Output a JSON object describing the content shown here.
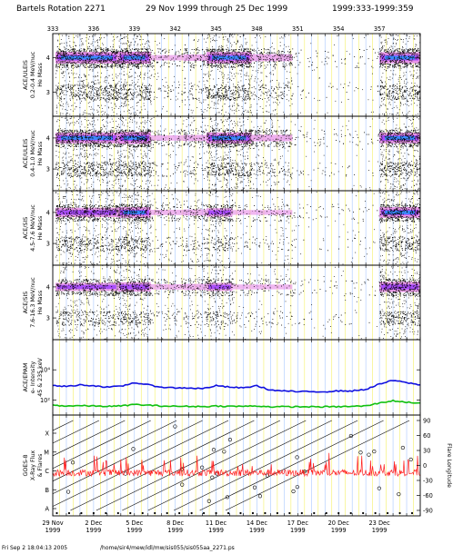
{
  "header": {
    "title_left": "Bartels Rotation 2271",
    "title_mid": "29 Nov 1999 through 25 Dec 1999",
    "title_right": "1999:333-1999:359"
  },
  "footer": {
    "timestamp": "Fri Sep  2 18:04:13 2005",
    "path": "/home/sir4/mew/idl/mw/sis055/sis055aa_2271.ps"
  },
  "colors": {
    "plasma_low": "#e68ae6",
    "plasma_mid": "#a040ff",
    "plasma_high": "#3a8aff",
    "plasma_core": "#60f0ff",
    "grid_yellow": "#f4f066",
    "grid_blue": "#a8c8ff",
    "epam_line": "#1010e0",
    "epam_low_line": "#10c010",
    "goes_line": "#ff2020"
  },
  "chart_data": {
    "type": "multi-panel time series",
    "x": {
      "day_of_year_range": [
        333,
        360
      ],
      "top_ticks": [
        "333",
        "336",
        "339",
        "342",
        "345",
        "348",
        "351",
        "354",
        "357"
      ],
      "top_tick_days": [
        333,
        336,
        339,
        342,
        345,
        348,
        351,
        354,
        357
      ],
      "bottom_ticks": [
        {
          "day": 333,
          "line1": "29 Nov",
          "line2": "1999"
        },
        {
          "day": 336,
          "line1": "2 Dec",
          "line2": "1999"
        },
        {
          "day": 339,
          "line1": "5 Dec",
          "line2": "1999"
        },
        {
          "day": 342,
          "line1": "8 Dec",
          "line2": "1999"
        },
        {
          "day": 345,
          "line1": "11 Dec",
          "line2": "1999"
        },
        {
          "day": 348,
          "line1": "14 Dec",
          "line2": "1999"
        },
        {
          "day": 351,
          "line1": "17 Dec",
          "line2": "1999"
        },
        {
          "day": 354,
          "line1": "20 Dec",
          "line2": "1999"
        },
        {
          "day": 357,
          "line1": "23 Dec",
          "line2": "1999"
        }
      ]
    },
    "mass_panels": [
      {
        "label_lines": [
          "ACE/ULEIS",
          "0.2-0.4 MeV/nuc",
          "He Mass"
        ],
        "yticks": [
          "4",
          "3"
        ],
        "ytick_values": [
          4,
          3
        ],
        "ylim": [
          2.3,
          4.7
        ],
        "activity": [
          {
            "start": 333.2,
            "end": 337.8,
            "intensity": 0.95
          },
          {
            "start": 337.8,
            "end": 340.2,
            "intensity": 1.0
          },
          {
            "start": 340.2,
            "end": 342.6,
            "intensity": 0.2
          },
          {
            "start": 342.6,
            "end": 344.3,
            "intensity": 0.35
          },
          {
            "start": 344.3,
            "end": 347.6,
            "intensity": 0.95
          },
          {
            "start": 347.6,
            "end": 350.6,
            "intensity": 0.4
          },
          {
            "start": 350.6,
            "end": 357.0,
            "intensity": 0.06
          },
          {
            "start": 357.0,
            "end": 360.0,
            "intensity": 0.9
          }
        ]
      },
      {
        "label_lines": [
          "ACE/ULEIS",
          "0.4-1.0 MeV/nuc",
          "He Mass"
        ],
        "yticks": [
          "4",
          "3"
        ],
        "ytick_values": [
          4,
          3
        ],
        "ylim": [
          2.3,
          4.7
        ],
        "activity": [
          {
            "start": 333.2,
            "end": 337.8,
            "intensity": 0.85
          },
          {
            "start": 337.8,
            "end": 340.2,
            "intensity": 1.0
          },
          {
            "start": 340.2,
            "end": 342.6,
            "intensity": 0.2
          },
          {
            "start": 342.6,
            "end": 344.3,
            "intensity": 0.3
          },
          {
            "start": 344.3,
            "end": 347.6,
            "intensity": 0.9
          },
          {
            "start": 347.6,
            "end": 350.6,
            "intensity": 0.35
          },
          {
            "start": 350.6,
            "end": 357.0,
            "intensity": 0.06
          },
          {
            "start": 357.0,
            "end": 360.0,
            "intensity": 0.85
          }
        ]
      },
      {
        "label_lines": [
          "ACE/SIS",
          "4.5-7.6 MeV/nuc",
          "He Mass"
        ],
        "yticks": [
          "4",
          "3"
        ],
        "ytick_values": [
          4,
          3
        ],
        "ylim": [
          2.3,
          4.7
        ],
        "activity": [
          {
            "start": 333.2,
            "end": 337.8,
            "intensity": 0.7
          },
          {
            "start": 337.8,
            "end": 340.2,
            "intensity": 0.85
          },
          {
            "start": 340.2,
            "end": 342.6,
            "intensity": 0.2
          },
          {
            "start": 342.6,
            "end": 344.3,
            "intensity": 0.3
          },
          {
            "start": 344.3,
            "end": 346.2,
            "intensity": 0.6
          },
          {
            "start": 346.2,
            "end": 350.6,
            "intensity": 0.15
          },
          {
            "start": 350.6,
            "end": 357.0,
            "intensity": 0.05
          },
          {
            "start": 357.0,
            "end": 360.0,
            "intensity": 0.85
          }
        ]
      },
      {
        "label_lines": [
          "ACE/SIS",
          "7.6-16.3 MeV/nuc",
          "He Mass"
        ],
        "yticks": [
          "4",
          "3"
        ],
        "ytick_values": [
          4,
          3
        ],
        "ylim": [
          2.3,
          4.7
        ],
        "activity": [
          {
            "start": 333.2,
            "end": 337.8,
            "intensity": 0.55
          },
          {
            "start": 337.8,
            "end": 340.2,
            "intensity": 0.7
          },
          {
            "start": 340.2,
            "end": 342.6,
            "intensity": 0.2
          },
          {
            "start": 342.6,
            "end": 344.3,
            "intensity": 0.3
          },
          {
            "start": 344.3,
            "end": 346.2,
            "intensity": 0.55
          },
          {
            "start": 346.2,
            "end": 350.6,
            "intensity": 0.15
          },
          {
            "start": 350.6,
            "end": 357.0,
            "intensity": 0.05
          },
          {
            "start": 357.0,
            "end": 360.0,
            "intensity": 0.8
          }
        ]
      }
    ],
    "epam_panel": {
      "label_lines": [
        "ACE/EPAM",
        "e- Intensity",
        "45 & 235 keV"
      ],
      "yticks": [
        "10⁴",
        "10²"
      ],
      "ytick_log_values": [
        4,
        2
      ],
      "ylim_log": [
        1,
        6
      ],
      "series": [
        {
          "color": "#1010e0",
          "days": [
            333,
            334,
            335,
            336,
            337,
            338,
            339,
            340,
            341,
            342,
            343,
            344,
            345,
            346,
            347,
            348,
            349,
            350,
            351,
            352,
            353,
            354,
            355,
            356,
            357,
            358,
            359,
            360
          ],
          "log_values": [
            2.95,
            2.9,
            3.0,
            2.95,
            2.85,
            2.9,
            3.15,
            3.0,
            2.85,
            2.8,
            2.8,
            2.75,
            2.95,
            2.85,
            2.8,
            2.95,
            2.65,
            2.6,
            2.55,
            2.55,
            2.55,
            2.6,
            2.6,
            2.7,
            3.05,
            3.3,
            3.15,
            3.0
          ]
        },
        {
          "color": "#10c010",
          "days": [
            333,
            334,
            335,
            336,
            337,
            338,
            339,
            340,
            341,
            342,
            343,
            344,
            345,
            346,
            347,
            348,
            349,
            350,
            351,
            352,
            353,
            354,
            355,
            356,
            357,
            358,
            359,
            360
          ],
          "log_values": [
            1.65,
            1.6,
            1.62,
            1.6,
            1.58,
            1.6,
            1.7,
            1.65,
            1.6,
            1.58,
            1.58,
            1.56,
            1.6,
            1.58,
            1.58,
            1.6,
            1.55,
            1.55,
            1.55,
            1.55,
            1.55,
            1.55,
            1.58,
            1.6,
            1.8,
            1.95,
            1.85,
            1.8
          ]
        }
      ]
    },
    "goes_panel": {
      "label_lines": [
        "GOES-8",
        "X-Ray Flux",
        "& Flares"
      ],
      "left_ticks": [
        "X",
        "M",
        "C",
        "B",
        "A"
      ],
      "left_tick_log_flux": [
        -4,
        -5,
        -6,
        -7,
        -8
      ],
      "right_label": "Flare Longitude",
      "right_ticks": [
        "90",
        "60",
        "30",
        "0",
        "-30",
        "-60",
        "-90"
      ],
      "right_tick_values": [
        90,
        60,
        30,
        0,
        -30,
        -60,
        -90
      ],
      "flux_baseline_log": -6.1
    }
  }
}
